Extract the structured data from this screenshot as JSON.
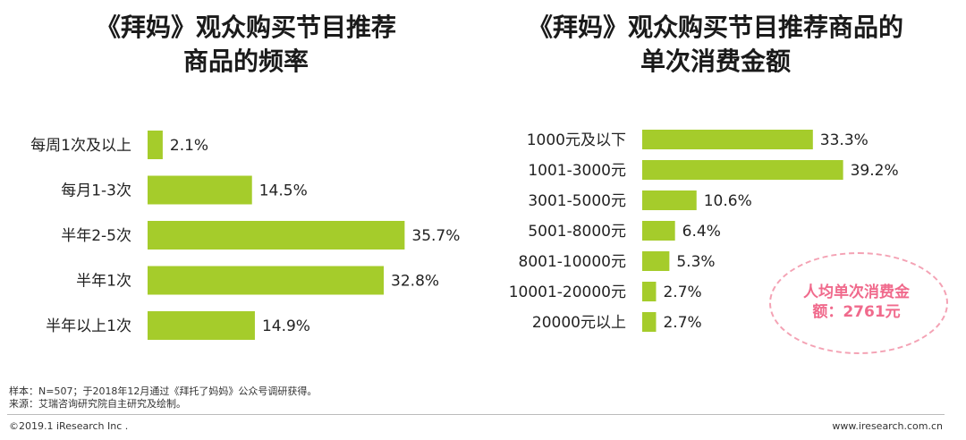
{
  "colors": {
    "bar": "#a5cc2b",
    "stamp_text": "#f06a8c",
    "stamp_border": "#f4a2b4"
  },
  "chart_data": [
    {
      "type": "bar",
      "orientation": "horizontal",
      "title": "《拜妈》观众购买节目推荐商品的频率",
      "title_lines": [
        "《拜妈》观众购买节目推荐",
        "商品的频率"
      ],
      "categories": [
        "每周1次及以上",
        "每月1-3次",
        "半年2-5次",
        "半年1次",
        "半年以上1次"
      ],
      "values": [
        2.1,
        14.5,
        35.7,
        32.8,
        14.9
      ],
      "labels": [
        "2.1%",
        "14.5%",
        "35.7%",
        "32.8%",
        "14.9%"
      ],
      "unit": "%",
      "xlim": [
        0,
        40
      ]
    },
    {
      "type": "bar",
      "orientation": "horizontal",
      "title": "《拜妈》观众购买节目推荐商品的单次消费金额",
      "title_lines": [
        "《拜妈》观众购买节目推荐商品的",
        "单次消费金额"
      ],
      "categories": [
        "1000元及以下",
        "1001-3000元",
        "3001-5000元",
        "5001-8000元",
        "8001-10000元",
        "10001-20000元",
        "20000元以上"
      ],
      "values": [
        33.3,
        39.2,
        10.6,
        6.4,
        5.3,
        2.7,
        2.7
      ],
      "labels": [
        "33.3%",
        "39.2%",
        "10.6%",
        "6.4%",
        "5.3%",
        "2.7%",
        "2.7%"
      ],
      "unit": "%",
      "xlim": [
        0,
        40
      ],
      "annotation_lines": [
        "人均单次消费金",
        "额：2761元"
      ]
    }
  ],
  "notes": {
    "sample": "样本：N=507；于2018年12月通过《拜托了妈妈》公众号调研获得。",
    "source": "来源：艾瑞咨询研究院自主研究及绘制。"
  },
  "footer": {
    "copyright": "©2019.1 iResearch Inc .",
    "website": "www.iresearch.com.cn"
  }
}
